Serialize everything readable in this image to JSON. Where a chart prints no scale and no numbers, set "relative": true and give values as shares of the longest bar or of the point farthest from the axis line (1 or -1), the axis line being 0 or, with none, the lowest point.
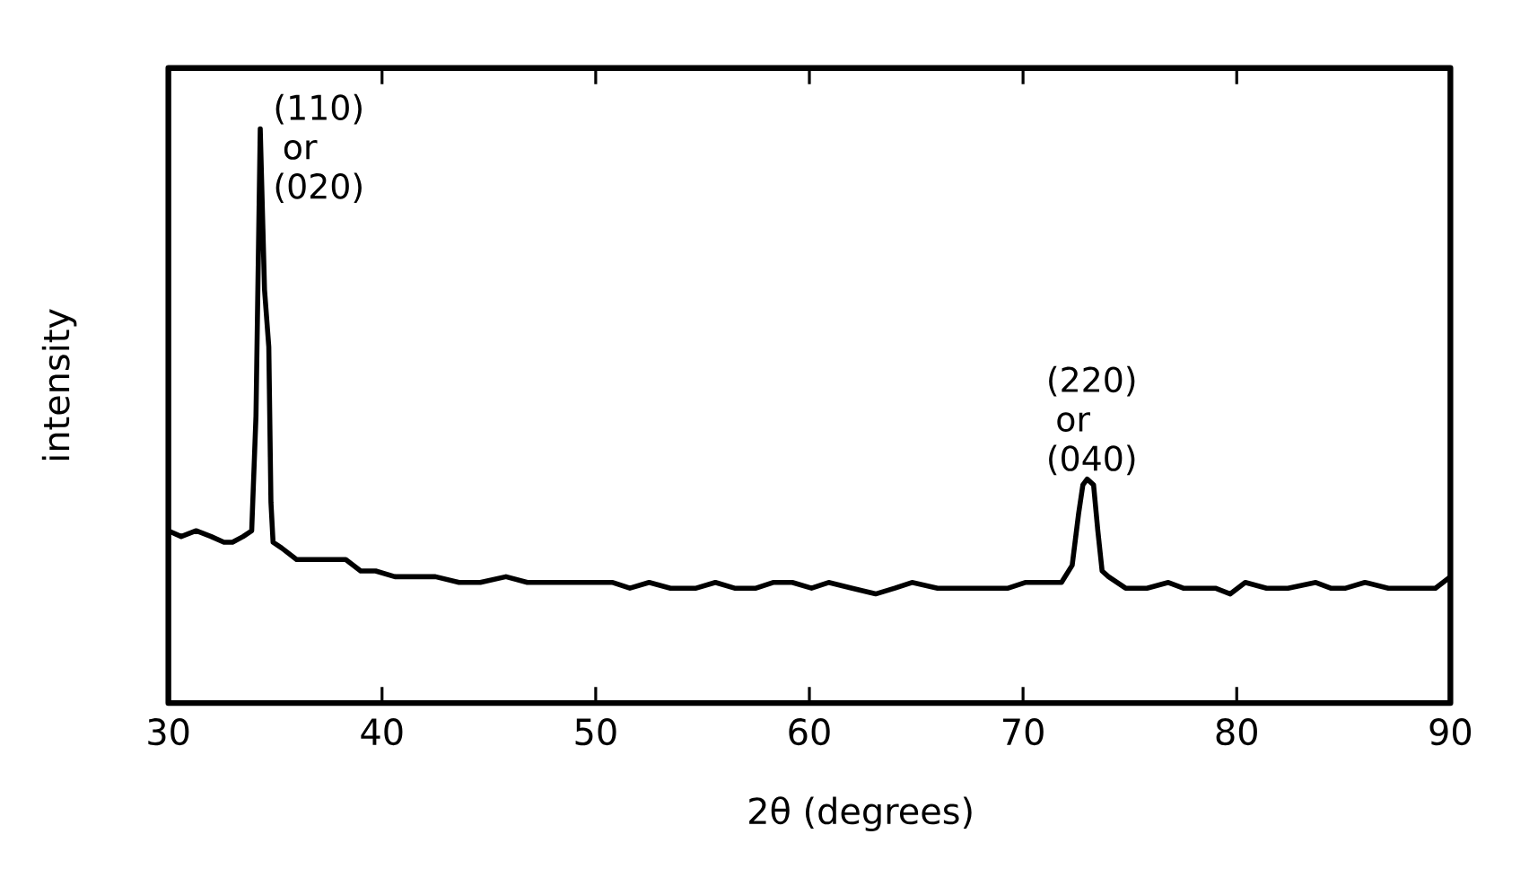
{
  "chart_data": {
    "type": "line",
    "xlabel": "2θ (degrees)",
    "ylabel": "intensity",
    "relative": true,
    "xlim": [
      30,
      90
    ],
    "xticks": [
      30,
      40,
      50,
      60,
      70,
      80,
      90
    ],
    "series": [
      {
        "color": "#000000",
        "x": [
          30.0,
          30.6,
          31.3,
          32.0,
          32.6,
          33.0,
          33.5,
          33.9,
          34.1,
          34.3,
          34.5,
          34.7,
          34.8,
          34.9,
          35.3,
          36.0,
          37.0,
          38.3,
          39.0,
          39.7,
          40.6,
          41.6,
          42.5,
          43.6,
          44.6,
          45.8,
          46.8,
          47.6,
          48.6,
          49.2,
          50.0,
          50.8,
          51.6,
          52.5,
          53.5,
          54.7,
          55.6,
          56.5,
          57.5,
          58.3,
          59.2,
          60.1,
          60.9,
          62.0,
          63.1,
          64.0,
          64.8,
          66.0,
          67.3,
          68.5,
          69.3,
          70.1,
          71.0,
          71.8,
          72.3,
          72.6,
          72.8,
          73.0,
          73.3,
          73.5,
          73.7,
          74.0,
          74.8,
          75.8,
          76.8,
          77.5,
          78.2,
          79.0,
          79.7,
          80.4,
          81.4,
          82.4,
          83.7,
          84.4,
          85.1,
          86.0,
          87.1,
          88.5,
          89.3,
          90.0
        ],
        "values": [
          0.3,
          0.29,
          0.3,
          0.29,
          0.28,
          0.28,
          0.29,
          0.3,
          0.5,
          1.0,
          0.72,
          0.62,
          0.35,
          0.28,
          0.27,
          0.25,
          0.25,
          0.25,
          0.23,
          0.23,
          0.22,
          0.22,
          0.22,
          0.21,
          0.21,
          0.22,
          0.21,
          0.21,
          0.21,
          0.21,
          0.21,
          0.21,
          0.2,
          0.21,
          0.2,
          0.2,
          0.21,
          0.2,
          0.2,
          0.21,
          0.21,
          0.2,
          0.21,
          0.2,
          0.19,
          0.2,
          0.21,
          0.2,
          0.2,
          0.2,
          0.2,
          0.21,
          0.21,
          0.21,
          0.24,
          0.33,
          0.38,
          0.39,
          0.38,
          0.3,
          0.23,
          0.22,
          0.2,
          0.2,
          0.21,
          0.2,
          0.2,
          0.2,
          0.19,
          0.21,
          0.2,
          0.2,
          0.21,
          0.2,
          0.2,
          0.21,
          0.2,
          0.2,
          0.2,
          0.22
        ]
      }
    ],
    "annotations": [
      {
        "text": "(110) or (020)",
        "x": 34.3,
        "y": 1.0
      },
      {
        "text": "(220) or (040)",
        "x": 73.0,
        "y": 0.39
      }
    ]
  }
}
